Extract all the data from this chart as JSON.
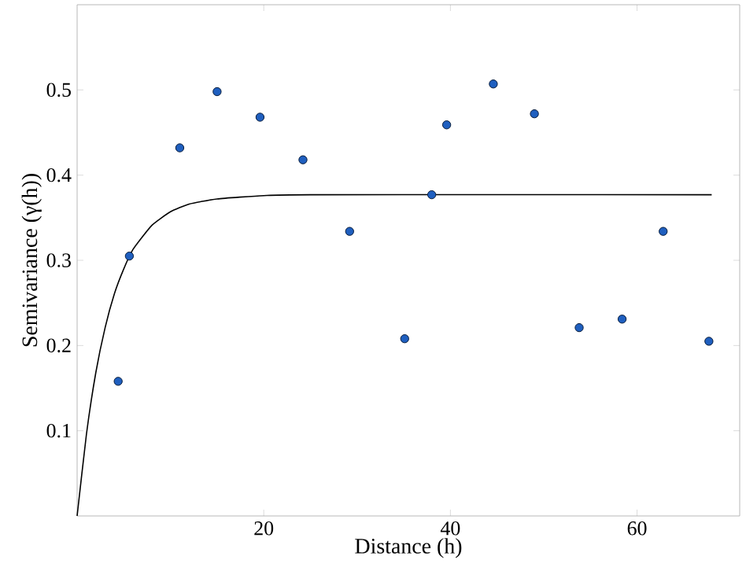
{
  "chart_data": {
    "type": "scatter",
    "xlabel": "Distance (h)",
    "ylabel": "Semivariance (γ(h))",
    "xlim": [
      0,
      71
    ],
    "ylim": [
      0,
      0.6
    ],
    "xticks": [
      20,
      40,
      60
    ],
    "yticks": [
      0.1,
      0.2,
      0.3,
      0.4,
      0.5
    ],
    "grid": false,
    "series": [
      {
        "marker": "circle",
        "color": "#1f5fbf",
        "x": [
          4.4,
          5.6,
          11.0,
          15.0,
          19.6,
          24.2,
          29.2,
          35.1,
          38.0,
          39.6,
          44.6,
          49.0,
          53.8,
          58.4,
          62.8,
          67.7
        ],
        "values": [
          0.158,
          0.305,
          0.432,
          0.498,
          0.468,
          0.418,
          0.334,
          0.208,
          0.377,
          0.459,
          0.507,
          0.472,
          0.221,
          0.231,
          0.334,
          0.205
        ]
      },
      {
        "type": "line",
        "marker": "none",
        "color": "#000000",
        "x": [
          0,
          1,
          2,
          3,
          4,
          5,
          6,
          8,
          10,
          12,
          15,
          20,
          25,
          68
        ],
        "values": [
          0,
          0.096,
          0.168,
          0.221,
          0.261,
          0.29,
          0.313,
          0.341,
          0.357,
          0.366,
          0.372,
          0.376,
          0.377,
          0.377
        ]
      }
    ]
  }
}
